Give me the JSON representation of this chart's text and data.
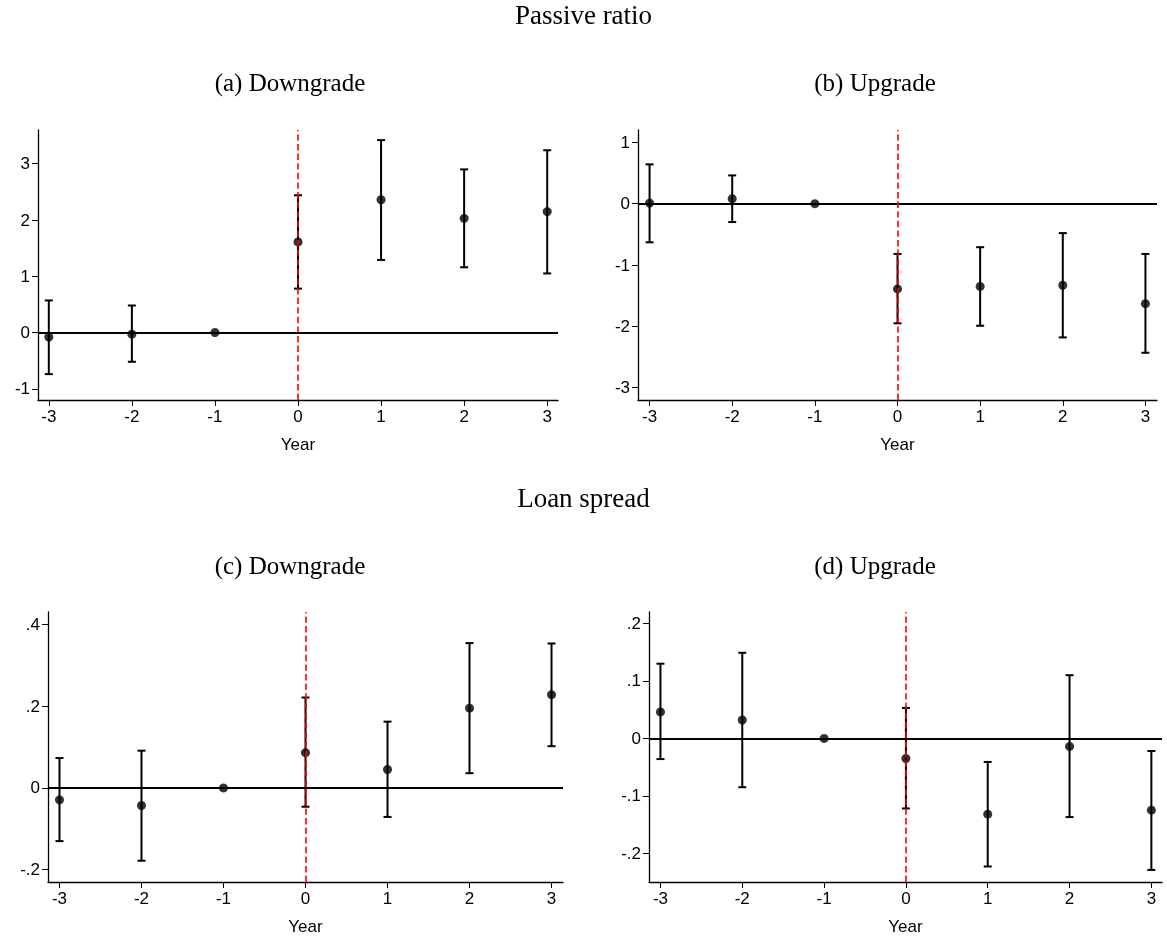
{
  "chart_data": [
    {
      "type": "scatter",
      "title": "(a) Downgrade",
      "annotations": [
        "Passive ratio"
      ],
      "xlabel": "Year",
      "x": [
        -3,
        -2,
        -1,
        0,
        1,
        2,
        3
      ],
      "values": [
        -0.08,
        -0.03,
        0,
        1.61,
        2.36,
        2.03,
        2.15
      ],
      "errors": [
        [
          -0.74,
          0.57
        ],
        [
          -0.52,
          0.48
        ],
        null,
        [
          0.78,
          2.44
        ],
        [
          1.29,
          3.42
        ],
        [
          1.16,
          2.9
        ],
        [
          1.05,
          3.24
        ]
      ],
      "color": "#000000",
      "marker": "circle",
      "xlim": [
        -3.13,
        3.13
      ],
      "xticks": [
        -3,
        -2,
        -1,
        0,
        1,
        2,
        3
      ],
      "ylim": [
        -1.2,
        3.6
      ],
      "yticks": [
        -1,
        0,
        1,
        2,
        3
      ],
      "ref_lines": [
        {
          "axis": "y",
          "value": 0,
          "color": "#000000",
          "line_style": "solid"
        },
        {
          "axis": "x",
          "value": 0,
          "color": "#ff0000",
          "line_style": "dashed"
        }
      ]
    },
    {
      "type": "scatter",
      "title": "(b) Upgrade",
      "xlabel": "Year",
      "x": [
        -3,
        -2,
        -1,
        0,
        1,
        2,
        3
      ],
      "values": [
        0.01,
        0.08,
        0,
        -1.39,
        -1.35,
        -1.33,
        -1.63
      ],
      "errors": [
        [
          -0.63,
          0.64
        ],
        [
          -0.3,
          0.46
        ],
        null,
        [
          -1.95,
          -0.82
        ],
        [
          -1.99,
          -0.71
        ],
        [
          -2.18,
          -0.48
        ],
        [
          -2.43,
          -0.82
        ]
      ],
      "color": "#000000",
      "marker": "circle",
      "xlim": [
        -3.14,
        3.14
      ],
      "xticks": [
        -3,
        -2,
        -1,
        0,
        1,
        2,
        3
      ],
      "ylim": [
        -3.2,
        1.2
      ],
      "yticks": [
        -3,
        -2,
        -1,
        0,
        1
      ],
      "ref_lines": [
        {
          "axis": "y",
          "value": 0,
          "color": "#000000",
          "line_style": "solid"
        },
        {
          "axis": "x",
          "value": 0,
          "color": "#ff0000",
          "line_style": "dashed"
        }
      ]
    },
    {
      "type": "scatter",
      "title": "(c) Downgrade",
      "annotations": [
        "Loan spread"
      ],
      "xlabel": "Year",
      "x": [
        -3,
        -2,
        -1,
        0,
        1,
        2,
        3
      ],
      "values": [
        -0.029,
        -0.043,
        0,
        0.086,
        0.045,
        0.195,
        0.228
      ],
      "errors": [
        [
          -0.13,
          0.073
        ],
        [
          -0.178,
          0.091
        ],
        null,
        [
          -0.046,
          0.221
        ],
        [
          -0.071,
          0.162
        ],
        [
          0.036,
          0.354
        ],
        [
          0.102,
          0.353
        ]
      ],
      "color": "#000000",
      "marker": "circle",
      "xlim": [
        -3.14,
        3.14
      ],
      "xticks": [
        -3,
        -2,
        -1,
        0,
        1,
        2,
        3
      ],
      "ylim": [
        -0.23,
        0.43
      ],
      "yticks": [
        {
          "value": -0.2,
          "label": "-.2"
        },
        0,
        {
          "value": 0.2,
          "label": ".2"
        },
        {
          "value": 0.4,
          "label": ".4"
        }
      ],
      "ref_lines": [
        {
          "axis": "y",
          "value": 0,
          "color": "#000000",
          "line_style": "solid"
        },
        {
          "axis": "x",
          "value": 0,
          "color": "#ff0000",
          "line_style": "dashed"
        }
      ]
    },
    {
      "type": "scatter",
      "title": "(d) Upgrade",
      "xlabel": "Year",
      "x": [
        -3,
        -2,
        -1,
        0,
        1,
        2,
        3
      ],
      "values": [
        0.046,
        0.032,
        0,
        -0.035,
        -0.132,
        -0.014,
        -0.125
      ],
      "errors": [
        [
          -0.036,
          0.13
        ],
        [
          -0.085,
          0.149
        ],
        null,
        [
          -0.122,
          0.053
        ],
        [
          -0.223,
          -0.041
        ],
        [
          -0.137,
          0.11
        ],
        [
          -0.229,
          -0.022
        ]
      ],
      "color": "#000000",
      "marker": "circle",
      "xlim": [
        -3.14,
        3.13
      ],
      "xticks": [
        -3,
        -2,
        -1,
        0,
        1,
        2,
        3
      ],
      "ylim": [
        -0.25,
        0.22
      ],
      "yticks": [
        {
          "value": -0.2,
          "label": "-.2"
        },
        {
          "value": -0.1,
          "label": "-.1"
        },
        0,
        {
          "value": 0.1,
          "label": ".1"
        },
        {
          "value": 0.2,
          "label": ".2"
        }
      ],
      "ref_lines": [
        {
          "axis": "y",
          "value": 0,
          "color": "#000000",
          "line_style": "solid"
        },
        {
          "axis": "x",
          "value": 0,
          "color": "#ff0000",
          "line_style": "dashed"
        }
      ]
    }
  ]
}
